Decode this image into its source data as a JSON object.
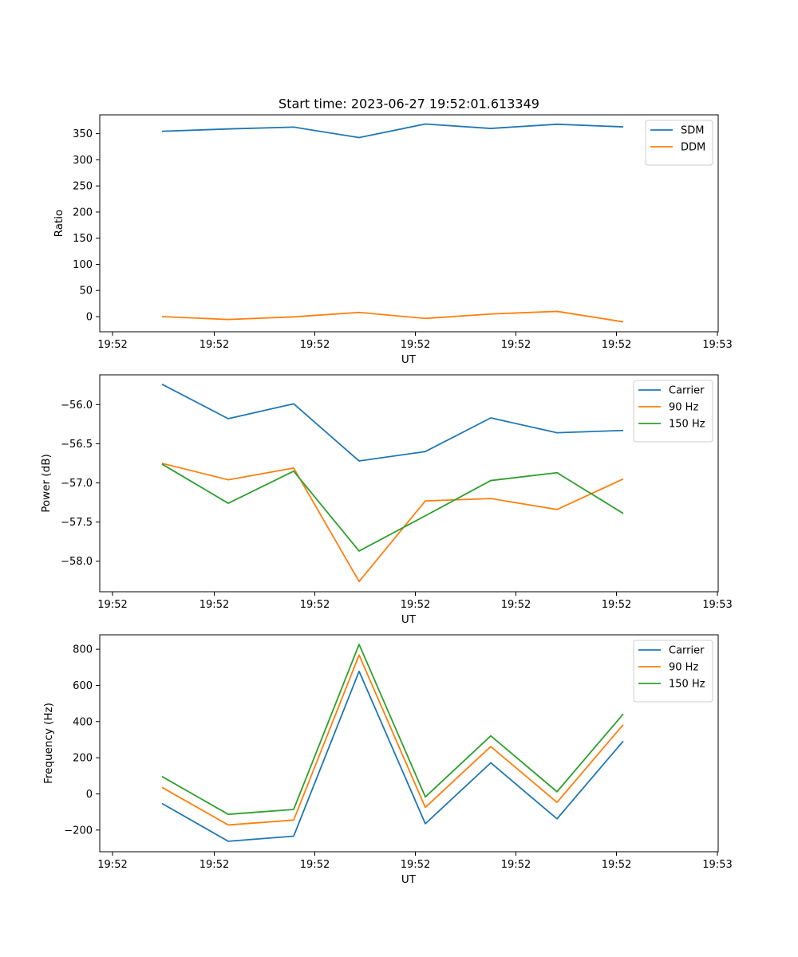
{
  "figure": {
    "title": "Start time: 2023-06-27 19:52:01.613349"
  },
  "chart_data": [
    {
      "type": "line",
      "title": "Start time: 2023-06-27 19:52:01.613349",
      "xlabel": "UT",
      "ylabel": "Ratio",
      "x_tick_labels": [
        "19:52",
        "19:52",
        "19:52",
        "19:52",
        "19:52",
        "19:52",
        "19:53"
      ],
      "y_ticks": [
        0,
        50,
        100,
        150,
        200,
        250,
        300,
        350
      ],
      "ylim": [
        -29,
        386
      ],
      "legend": "top-right",
      "series": [
        {
          "name": "SDM",
          "color": "#1f77b4",
          "values": [
            354.5,
            359,
            362.5,
            342.5,
            368.5,
            360,
            368,
            363
          ]
        },
        {
          "name": "DDM",
          "color": "#ff7f0e",
          "values": [
            0,
            -5.5,
            -0.5,
            8,
            -3.5,
            5,
            10,
            -10
          ]
        }
      ]
    },
    {
      "type": "line",
      "xlabel": "UT",
      "ylabel": "Power (dB)",
      "x_tick_labels": [
        "19:52",
        "19:52",
        "19:52",
        "19:52",
        "19:52",
        "19:52",
        "19:53"
      ],
      "y_ticks": [
        -56.0,
        -56.5,
        -57.0,
        -57.5,
        -58.0
      ],
      "y_tick_labels": [
        "−56.0",
        "−56.5",
        "−57.0",
        "−57.5",
        "−58.0"
      ],
      "ylim": [
        -58.39,
        -55.62
      ],
      "legend": "top-right",
      "series": [
        {
          "name": "Carrier",
          "color": "#1f77b4",
          "values": [
            -55.74,
            -56.18,
            -55.99,
            -56.72,
            -56.6,
            -56.17,
            -56.36,
            -56.33
          ]
        },
        {
          "name": "90 Hz",
          "color": "#ff7f0e",
          "values": [
            -56.75,
            -56.96,
            -56.81,
            -58.26,
            -57.23,
            -57.2,
            -57.34,
            -56.95
          ]
        },
        {
          "name": "150 Hz",
          "color": "#2ca02c",
          "values": [
            -56.76,
            -57.26,
            -56.85,
            -57.87,
            -57.42,
            -56.97,
            -56.87,
            -57.39
          ]
        }
      ]
    },
    {
      "type": "line",
      "xlabel": "UT",
      "ylabel": "Frequency (Hz)",
      "x_tick_labels": [
        "19:52",
        "19:52",
        "19:52",
        "19:52",
        "19:52",
        "19:52",
        "19:53"
      ],
      "y_ticks": [
        -200,
        0,
        200,
        400,
        600,
        800
      ],
      "y_tick_labels": [
        "−200",
        "0",
        "200",
        "400",
        "600",
        "800"
      ],
      "ylim": [
        -320,
        880
      ],
      "legend": "top-right",
      "series": [
        {
          "name": "Carrier",
          "color": "#1f77b4",
          "values": [
            -53,
            -262,
            -234,
            678,
            -165,
            172,
            -138,
            292
          ]
        },
        {
          "name": "90 Hz",
          "color": "#ff7f0e",
          "values": [
            36,
            -172,
            -145,
            768,
            -75,
            262,
            -47,
            383
          ]
        },
        {
          "name": "150 Hz",
          "color": "#2ca02c",
          "values": [
            96,
            -113,
            -86,
            827,
            -17,
            321,
            12,
            442
          ]
        }
      ]
    }
  ]
}
